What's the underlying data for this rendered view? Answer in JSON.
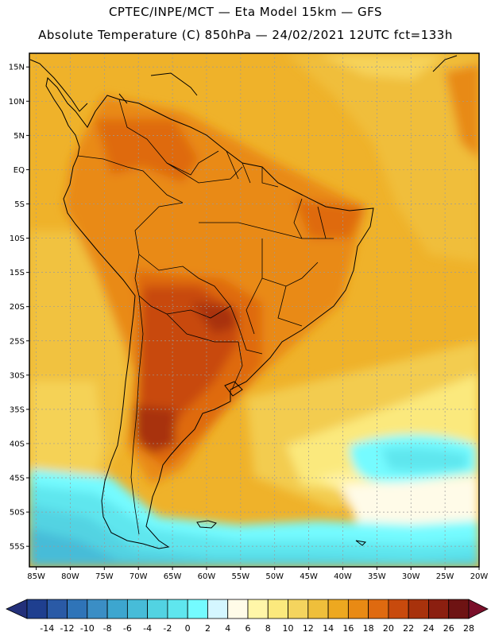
{
  "header": {
    "line1": "CPTEC/INPE/MCT —  Eta Model 15km — GFS",
    "line2": "Absolute Temperature (C) 850hPa — 24/02/2021 12UTC fct=133h"
  },
  "map": {
    "lat_labels": [
      "15N",
      "10N",
      "5N",
      "EQ",
      "5S",
      "10S",
      "15S",
      "20S",
      "25S",
      "30S",
      "35S",
      "40S",
      "45S",
      "50S",
      "55S"
    ],
    "lon_labels": [
      "85W",
      "80W",
      "75W",
      "70W",
      "65W",
      "60W",
      "55W",
      "50W",
      "45W",
      "40W",
      "35W",
      "30W",
      "25W",
      "20W"
    ],
    "lat_range": [
      17,
      -58
    ],
    "lon_range": [
      -86,
      -20
    ]
  },
  "colorbar": {
    "labels": [
      "-14",
      "-12",
      "-10",
      "-8",
      "-6",
      "-4",
      "-2",
      "0",
      "2",
      "4",
      "6",
      "8",
      "10",
      "12",
      "14",
      "16",
      "18",
      "20",
      "22",
      "24",
      "26",
      "28"
    ],
    "colors": [
      "#1f3f8f",
      "#2a5aa6",
      "#2f74b8",
      "#3b8ec5",
      "#3da6cf",
      "#47bcd8",
      "#52d3e2",
      "#5fe6ee",
      "#74fbff",
      "#d4f6ff",
      "#fffbe8",
      "#fff6a8",
      "#fbe97d",
      "#f4d45e",
      "#efbf3b",
      "#eda820",
      "#e98a14",
      "#df6a10",
      "#c84a0d",
      "#a8320c",
      "#8b1f10",
      "#6e1313"
    ]
  }
}
